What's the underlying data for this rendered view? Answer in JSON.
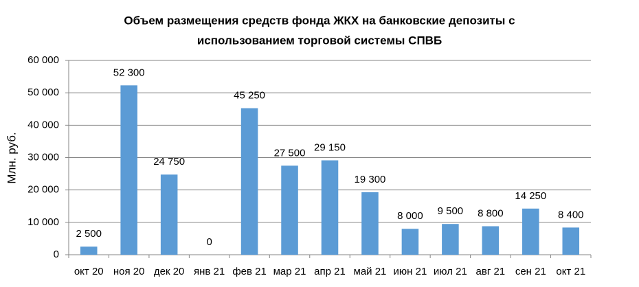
{
  "chart_data": {
    "type": "bar",
    "title": [
      "Объем размещения средств фонда ЖКХ на банковские депозиты с",
      "использованием торговой системы СПВБ"
    ],
    "y_label": "Млн. руб.",
    "categories": [
      "окт 20",
      "ноя 20",
      "дек 20",
      "янв 21",
      "фев 21",
      "мар 21",
      "апр 21",
      "май 21",
      "июн 21",
      "июл 21",
      "авг 21",
      "сен 21",
      "окт 21"
    ],
    "values": [
      2500,
      52300,
      24750,
      0,
      45250,
      27500,
      29150,
      19300,
      8000,
      9500,
      8800,
      14250,
      8400
    ],
    "value_labels": [
      "2 500",
      "52 300",
      "24 750",
      "0",
      "45 250",
      "27 500",
      "29 150",
      "19 300",
      "8 000",
      "9 500",
      "8 800",
      "14 250",
      "8 400"
    ],
    "color": "#5b9bd5",
    "ylim": [
      0,
      60000
    ],
    "yticks": [
      0,
      {
        "value": 10000,
        "label": "10 000"
      },
      {
        "value": 20000,
        "label": "20 000"
      },
      {
        "value": 30000,
        "label": "30 000"
      },
      {
        "value": 40000,
        "label": "40 000"
      },
      {
        "value": 50000,
        "label": "50 000"
      },
      {
        "value": 60000,
        "label": "60 000"
      }
    ],
    "grid": true
  }
}
